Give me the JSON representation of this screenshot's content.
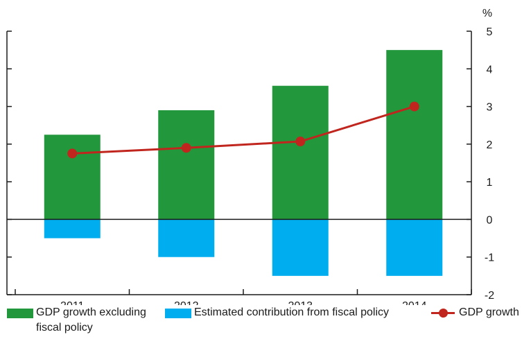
{
  "chart_data": {
    "type": "bar",
    "unit_label": "%",
    "categories": [
      "2011",
      "2012",
      "2013",
      "2014"
    ],
    "ylim": [
      -2,
      5
    ],
    "yticks": [
      "5",
      "4",
      "3",
      "2",
      "1",
      "0",
      "-1",
      "-2"
    ],
    "series": [
      {
        "name": "GDP growth excluding fiscal policy",
        "kind": "bar",
        "color": "#23973c",
        "values": [
          2.25,
          2.9,
          3.55,
          4.5
        ]
      },
      {
        "name": "Estimated contribution from fiscal policy",
        "kind": "bar",
        "color": "#00adef",
        "values": [
          -0.5,
          -1.0,
          -1.5,
          -1.5
        ]
      },
      {
        "name": "GDP growth",
        "kind": "line",
        "color": "#c0261e",
        "values": [
          1.75,
          1.9,
          2.07,
          3.0
        ]
      }
    ],
    "legend": {
      "position": "bottom",
      "item1_line1": "GDP growth excluding",
      "item1_line2": "fiscal policy",
      "item2": "Estimated contribution from fiscal policy",
      "item3": "GDP growth"
    },
    "grid": false
  }
}
